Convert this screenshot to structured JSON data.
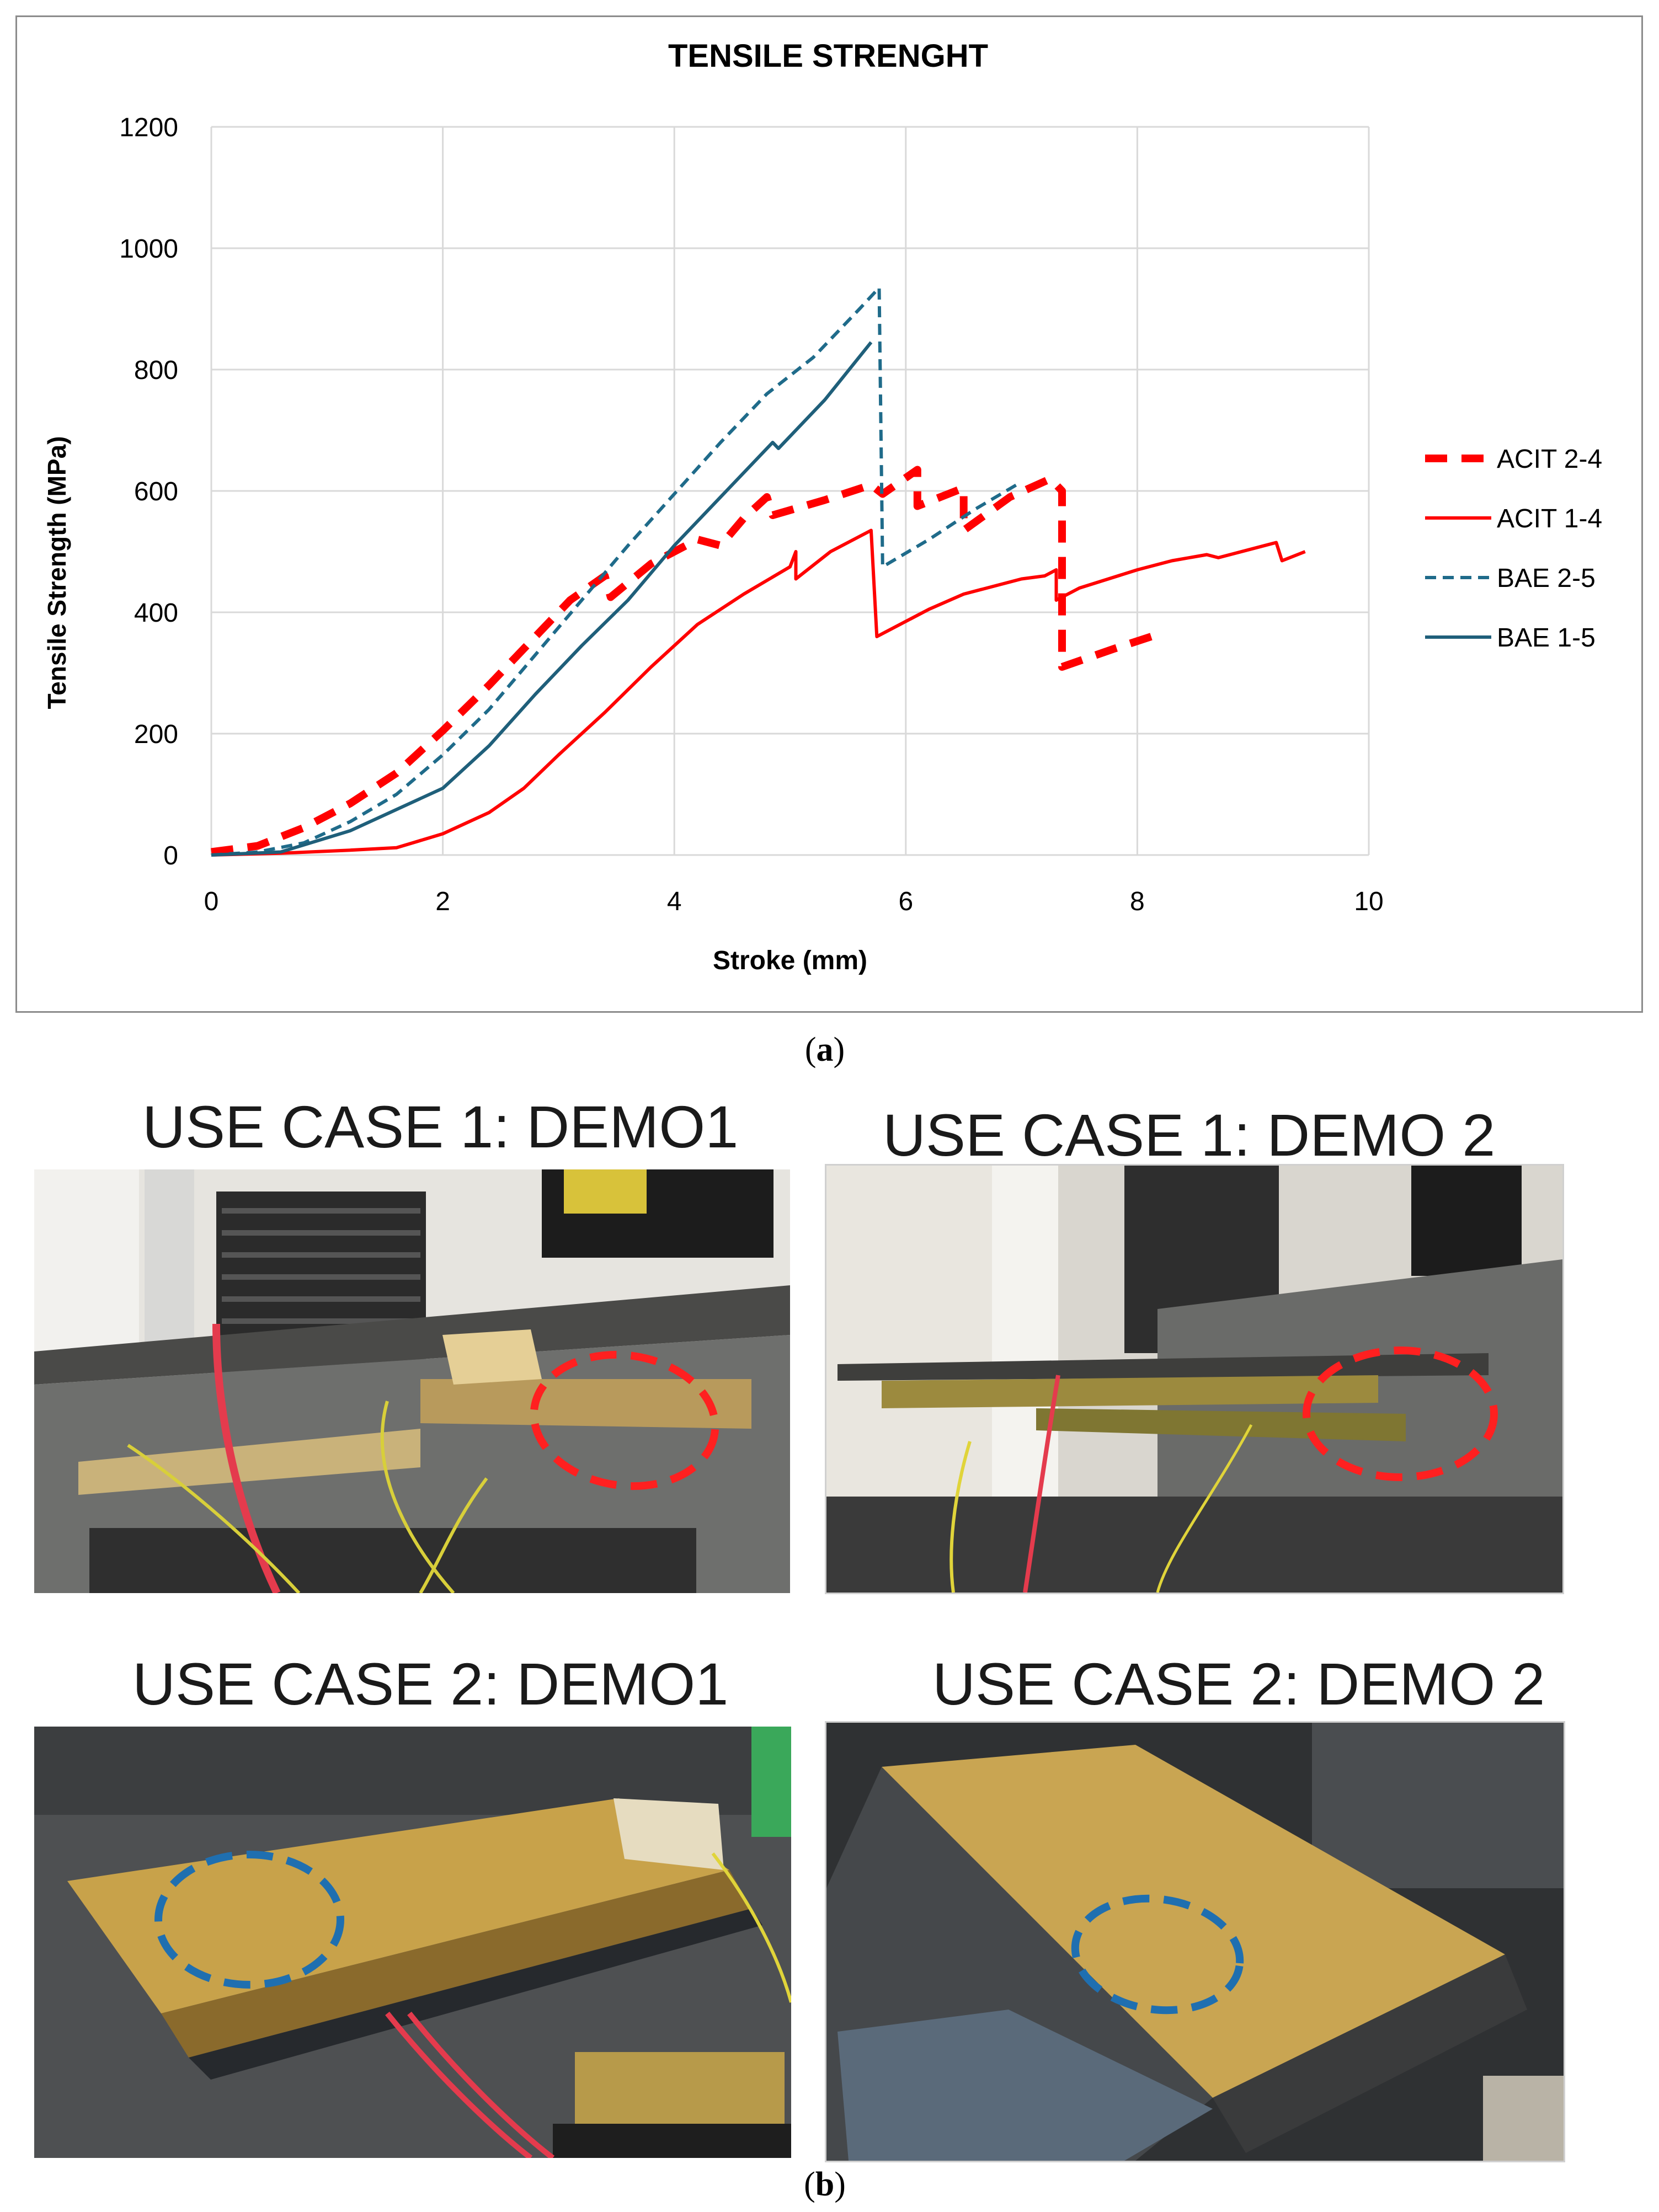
{
  "chart_data": {
    "type": "line",
    "title": "TENSILE STRENGHT",
    "xlabel": "Stroke (mm)",
    "ylabel": "Tensile Strength (MPa)",
    "xlim": [
      0,
      10
    ],
    "ylim": [
      0,
      1200
    ],
    "xticks": [
      0,
      2,
      4,
      6,
      8,
      10
    ],
    "yticks": [
      0,
      200,
      400,
      600,
      800,
      1000,
      1200
    ],
    "grid": true,
    "legend_position": "right",
    "series": [
      {
        "name": "ACIT 2-4",
        "color": "#ff0000",
        "style": "bold-dashed",
        "points": [
          [
            0,
            5
          ],
          [
            0.4,
            15
          ],
          [
            0.8,
            45
          ],
          [
            1.2,
            85
          ],
          [
            1.6,
            135
          ],
          [
            2.0,
            205
          ],
          [
            2.4,
            280
          ],
          [
            2.8,
            360
          ],
          [
            3.1,
            420
          ],
          [
            3.4,
            460
          ],
          [
            3.45,
            425
          ],
          [
            3.8,
            480
          ],
          [
            4.2,
            520
          ],
          [
            4.4,
            510
          ],
          [
            4.6,
            555
          ],
          [
            4.8,
            590
          ],
          [
            4.85,
            560
          ],
          [
            5.3,
            585
          ],
          [
            5.7,
            610
          ],
          [
            5.8,
            595
          ],
          [
            6.1,
            635
          ],
          [
            6.1,
            575
          ],
          [
            6.5,
            605
          ],
          [
            6.5,
            535
          ],
          [
            6.9,
            590
          ],
          [
            7.25,
            620
          ],
          [
            7.35,
            600
          ],
          [
            7.35,
            310
          ],
          [
            7.8,
            340
          ],
          [
            8.2,
            365
          ]
        ]
      },
      {
        "name": "ACIT 1-4",
        "color": "#ff0000",
        "style": "solid",
        "points": [
          [
            0,
            0
          ],
          [
            0.6,
            3
          ],
          [
            1.2,
            8
          ],
          [
            1.6,
            12
          ],
          [
            2.0,
            35
          ],
          [
            2.4,
            70
          ],
          [
            2.7,
            110
          ],
          [
            3.0,
            165
          ],
          [
            3.4,
            235
          ],
          [
            3.8,
            310
          ],
          [
            4.2,
            380
          ],
          [
            4.6,
            430
          ],
          [
            5.0,
            475
          ],
          [
            5.05,
            500
          ],
          [
            5.05,
            455
          ],
          [
            5.35,
            500
          ],
          [
            5.7,
            535
          ],
          [
            5.75,
            360
          ],
          [
            6.2,
            405
          ],
          [
            6.5,
            430
          ],
          [
            7.0,
            455
          ],
          [
            7.2,
            460
          ],
          [
            7.3,
            470
          ],
          [
            7.3,
            420
          ],
          [
            7.5,
            440
          ],
          [
            8.0,
            470
          ],
          [
            8.3,
            485
          ],
          [
            8.6,
            495
          ],
          [
            8.7,
            490
          ],
          [
            9.2,
            515
          ],
          [
            9.25,
            485
          ],
          [
            9.45,
            500
          ]
        ]
      },
      {
        "name": "BAE 2-5",
        "color": "#1f6b8a",
        "style": "dashed",
        "points": [
          [
            0,
            0
          ],
          [
            0.4,
            5
          ],
          [
            0.8,
            20
          ],
          [
            1.2,
            55
          ],
          [
            1.6,
            100
          ],
          [
            2.0,
            165
          ],
          [
            2.4,
            240
          ],
          [
            2.8,
            330
          ],
          [
            3.2,
            420
          ],
          [
            3.6,
            510
          ],
          [
            4.0,
            595
          ],
          [
            4.4,
            680
          ],
          [
            4.8,
            760
          ],
          [
            5.2,
            820
          ],
          [
            5.6,
            900
          ],
          [
            5.77,
            935
          ],
          [
            5.8,
            475
          ],
          [
            6.2,
            520
          ],
          [
            6.6,
            570
          ],
          [
            7.0,
            615
          ]
        ]
      },
      {
        "name": "BAE 1-5",
        "color": "#1f5f7a",
        "style": "solid",
        "points": [
          [
            0,
            0
          ],
          [
            0.6,
            5
          ],
          [
            1.2,
            40
          ],
          [
            1.6,
            75
          ],
          [
            2.0,
            110
          ],
          [
            2.4,
            180
          ],
          [
            2.8,
            265
          ],
          [
            3.2,
            345
          ],
          [
            3.6,
            420
          ],
          [
            4.0,
            510
          ],
          [
            4.4,
            590
          ],
          [
            4.85,
            680
          ],
          [
            4.9,
            670
          ],
          [
            5.3,
            750
          ],
          [
            5.7,
            845
          ]
        ]
      }
    ]
  },
  "captions": {
    "a": "a",
    "b": "b"
  },
  "panels": [
    {
      "title": "USE CASE 1: DEMO1",
      "marker_color": "#ff2020",
      "marker_style": "dashed-ellipse"
    },
    {
      "title": "USE CASE 1: DEMO 2",
      "marker_color": "#ff2020",
      "marker_style": "dashed-ellipse"
    },
    {
      "title": "USE CASE 2: DEMO1",
      "marker_color": "#1f6fb0",
      "marker_style": "dashed-ellipse"
    },
    {
      "title": "USE CASE 2: DEMO 2",
      "marker_color": "#1f6fb0",
      "marker_style": "dashed-ellipse"
    }
  ]
}
